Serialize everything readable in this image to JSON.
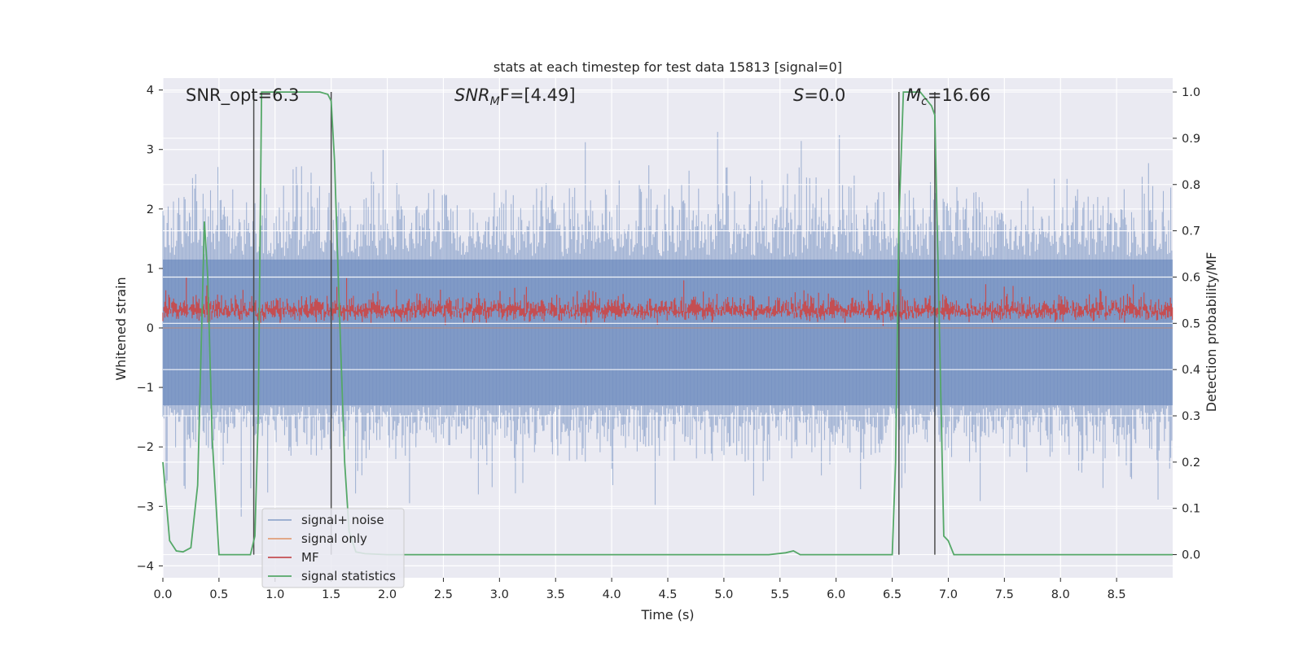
{
  "chart_data": {
    "type": "line",
    "title": "stats at each timestep for test data 15813 [signal=0]",
    "xlabel": "Time (s)",
    "ylabel_left": "Whitened strain",
    "ylabel_right": "Detection probability/MF",
    "xlim": [
      0,
      9
    ],
    "ylim_left": [
      -4.2,
      4.2
    ],
    "ylim_right": [
      -0.05,
      1.03
    ],
    "x_ticks": [
      "0.0",
      "0.5",
      "1.0",
      "1.5",
      "2.0",
      "2.5",
      "3.0",
      "3.5",
      "4.0",
      "4.5",
      "5.0",
      "5.5",
      "6.0",
      "6.5",
      "7.0",
      "7.5",
      "8.0",
      "8.5"
    ],
    "y_left_ticks": [
      "4",
      "3",
      "2",
      "1",
      "0",
      "−1",
      "−2",
      "−3",
      "−4"
    ],
    "y_right_ticks": [
      "1.0",
      "0.9",
      "0.8",
      "0.7",
      "0.6",
      "0.5",
      "0.4",
      "0.3",
      "0.2",
      "0.1",
      "0.0"
    ],
    "grid": true,
    "legend_placement": "lower-left",
    "annotations": {
      "snr_opt": "SNR_opt=6.3",
      "snr_mf_base": "SNR",
      "snr_mf_sub": "M",
      "snr_mf_rest": "F=[4.49]",
      "s_var": "S",
      "s_rest": "=0.0",
      "mc_var": "M",
      "mc_sub": "c",
      "mc_rest": "=16.66"
    },
    "series": [
      {
        "name": "signal+ noise",
        "color": "#4c72b0",
        "note": "dense noise band, roughly within [-3.8, 3.8] whitened strain"
      },
      {
        "name": "signal only",
        "color": "#dd8452",
        "note": "flat at zero"
      },
      {
        "name": "MF",
        "color": "#c44e52",
        "note": "dense band roughly within [0, 0.9] whitened strain"
      },
      {
        "name": "signal statistics",
        "color": "#55a868",
        "x": [
          0.0,
          0.06,
          0.12,
          0.18,
          0.25,
          0.31,
          0.37,
          0.4,
          0.44,
          0.5,
          0.56,
          0.62,
          0.7,
          0.78,
          0.82,
          0.85,
          0.88,
          0.92,
          1.0,
          1.2,
          1.4,
          1.47,
          1.5,
          1.53,
          1.57,
          1.62,
          1.66,
          1.72,
          1.8,
          2.0,
          3.0,
          4.0,
          5.0,
          5.4,
          5.55,
          5.62,
          5.68,
          5.75,
          6.0,
          6.4,
          6.5,
          6.53,
          6.56,
          6.6,
          6.66,
          6.75,
          6.85,
          6.88,
          6.92,
          6.96,
          7.0,
          7.05,
          8.0,
          9.0
        ],
        "y": [
          0.2,
          0.03,
          0.008,
          0.006,
          0.015,
          0.15,
          0.72,
          0.6,
          0.25,
          0.0,
          0.0,
          0.0,
          0.0,
          0.0,
          0.04,
          0.3,
          1.0,
          1.0,
          1.0,
          1.0,
          1.0,
          0.995,
          0.98,
          0.85,
          0.55,
          0.2,
          0.05,
          0.006,
          0.002,
          0.0,
          0.0,
          0.0,
          0.0,
          0.0,
          0.004,
          0.008,
          0.0,
          0.0,
          0.0,
          0.0,
          0.0,
          0.2,
          0.72,
          1.0,
          1.0,
          1.0,
          0.97,
          0.95,
          0.5,
          0.04,
          0.03,
          0.0,
          0.0,
          0.0
        ]
      }
    ],
    "vertical_lines_x": [
      0.81,
      1.5,
      6.56,
      6.88
    ]
  }
}
